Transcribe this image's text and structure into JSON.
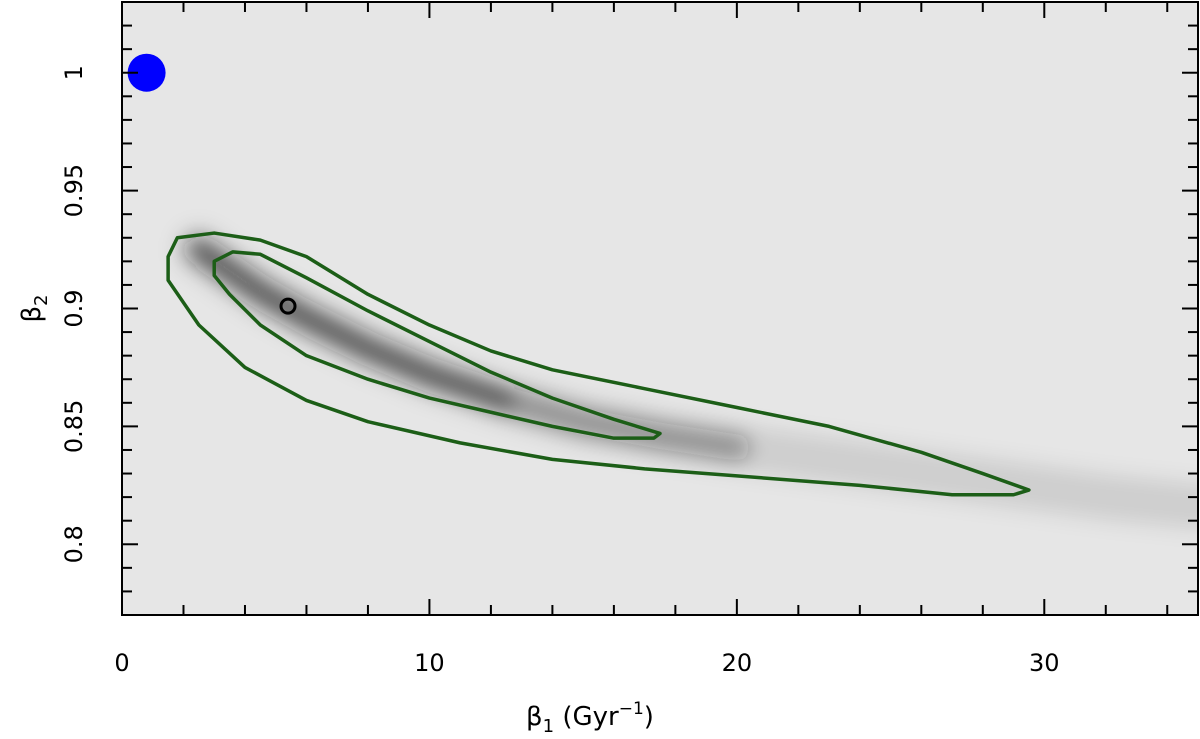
{
  "chart_data": {
    "type": "heatmap",
    "title": "",
    "xlabel": {
      "base": "β",
      "sub": "1",
      "unit_open": " (Gyr",
      "unit_sup": "−1",
      "unit_close": ")"
    },
    "ylabel": {
      "base": "β",
      "sub": "2"
    },
    "xlim": [
      0,
      35
    ],
    "ylim": [
      0.77,
      1.03
    ],
    "x_ticks": [
      {
        "value": 0,
        "label": "0"
      },
      {
        "value": 10,
        "label": "10"
      },
      {
        "value": 20,
        "label": "20"
      },
      {
        "value": 30,
        "label": "30"
      }
    ],
    "y_ticks": [
      {
        "value": 0.8,
        "label": "0.8"
      },
      {
        "value": 0.85,
        "label": "0.85"
      },
      {
        "value": 0.9,
        "label": "0.9"
      },
      {
        "value": 0.95,
        "label": "0.95"
      },
      {
        "value": 1.0,
        "label": "1"
      }
    ],
    "x_minor_step": 2,
    "y_minor_step": 0.01,
    "background_color": "#e6e6e6",
    "density_color": "#1e1e1e",
    "contour_color": "#1c5e17",
    "density_ridge": [
      [
        2.5,
        0.925
      ],
      [
        4.5,
        0.907
      ],
      [
        6.0,
        0.896
      ],
      [
        8.0,
        0.883
      ],
      [
        10.0,
        0.872
      ],
      [
        12.5,
        0.861
      ],
      [
        15.0,
        0.852
      ],
      [
        17.5,
        0.846
      ],
      [
        20.0,
        0.841
      ],
      [
        24.0,
        0.834
      ],
      [
        28.0,
        0.827
      ],
      [
        32.0,
        0.82
      ],
      [
        35.0,
        0.816
      ]
    ],
    "contours": [
      {
        "level": "inner",
        "points": [
          [
            3.0,
            0.92
          ],
          [
            3.6,
            0.924
          ],
          [
            4.5,
            0.923
          ],
          [
            6.0,
            0.913
          ],
          [
            8.0,
            0.899
          ],
          [
            10.0,
            0.886
          ],
          [
            12.0,
            0.873
          ],
          [
            14.0,
            0.862
          ],
          [
            16.0,
            0.853
          ],
          [
            17.5,
            0.847
          ],
          [
            17.3,
            0.845
          ],
          [
            16.0,
            0.845
          ],
          [
            14.0,
            0.85
          ],
          [
            12.0,
            0.856
          ],
          [
            10.0,
            0.862
          ],
          [
            8.0,
            0.87
          ],
          [
            6.0,
            0.88
          ],
          [
            4.5,
            0.893
          ],
          [
            3.5,
            0.906
          ],
          [
            3.0,
            0.914
          ]
        ]
      },
      {
        "level": "outer",
        "points": [
          [
            1.5,
            0.922
          ],
          [
            1.8,
            0.93
          ],
          [
            3.0,
            0.932
          ],
          [
            4.5,
            0.929
          ],
          [
            6.0,
            0.922
          ],
          [
            8.0,
            0.906
          ],
          [
            10.0,
            0.893
          ],
          [
            12.0,
            0.882
          ],
          [
            14.0,
            0.874
          ],
          [
            17.0,
            0.866
          ],
          [
            20.0,
            0.858
          ],
          [
            23.0,
            0.85
          ],
          [
            26.0,
            0.839
          ],
          [
            28.0,
            0.83
          ],
          [
            29.5,
            0.823
          ],
          [
            29.0,
            0.821
          ],
          [
            27.0,
            0.821
          ],
          [
            24.0,
            0.825
          ],
          [
            20.0,
            0.829
          ],
          [
            17.0,
            0.832
          ],
          [
            14.0,
            0.836
          ],
          [
            11.0,
            0.843
          ],
          [
            8.0,
            0.852
          ],
          [
            6.0,
            0.861
          ],
          [
            4.0,
            0.875
          ],
          [
            2.5,
            0.893
          ],
          [
            1.5,
            0.912
          ]
        ]
      }
    ],
    "points": [
      {
        "name": "best-fit",
        "x": 5.4,
        "y": 0.901,
        "fill": "none",
        "stroke": "#000000"
      },
      {
        "name": "reference",
        "x": 0.8,
        "y": 1.0,
        "fill": "#0000ff",
        "stroke": "none"
      }
    ]
  }
}
